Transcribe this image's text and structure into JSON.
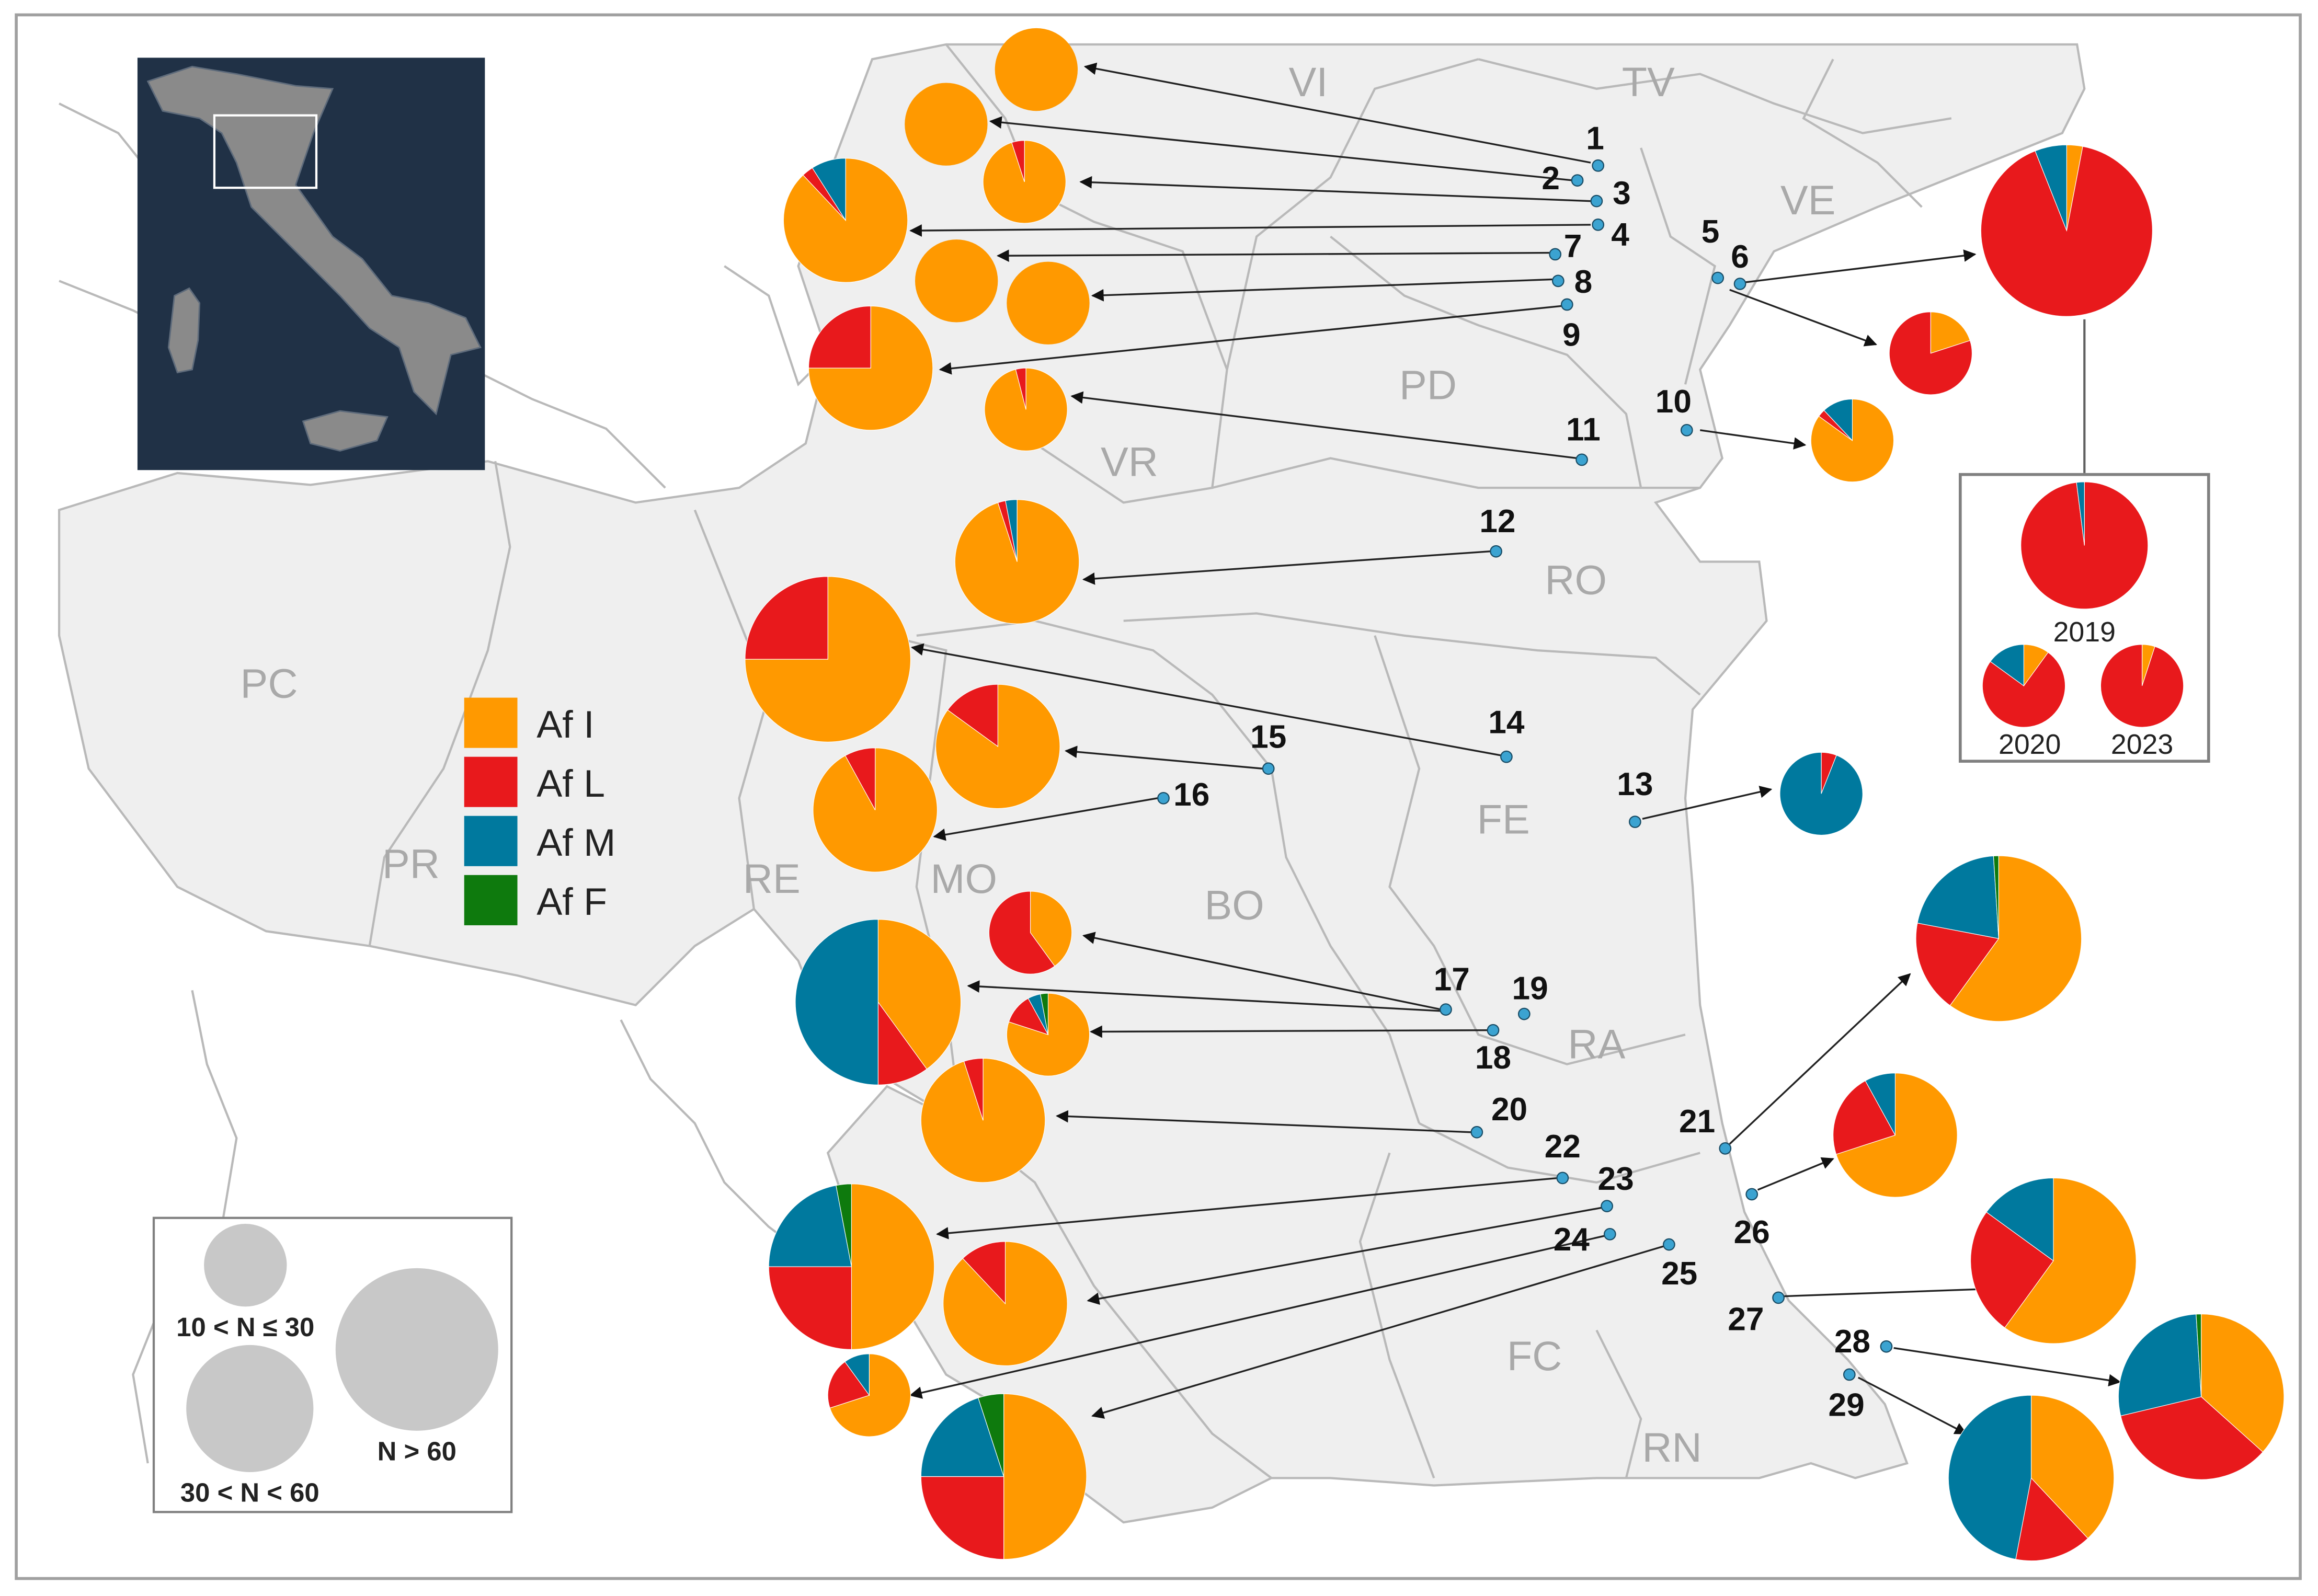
{
  "colors": {
    "af_i": "#FF9900",
    "af_l": "#E8191C",
    "af_m": "#00799E",
    "af_f": "#0E7A0D",
    "region_fill": "#EFEFEF",
    "border": "#B9B9B9",
    "inset_bg": "#203146",
    "site_dot": "#3BA3D1",
    "province_label": "#A9A9A9"
  },
  "provinces": [
    "VI",
    "TV",
    "VE",
    "PD",
    "VR",
    "RO",
    "PC",
    "PR",
    "RE",
    "MO",
    "BO",
    "FE",
    "RA",
    "FC",
    "RN"
  ],
  "site_labels": [
    "1",
    "2",
    "3",
    "4",
    "5",
    "6",
    "7",
    "8",
    "9",
    "10",
    "11",
    "12",
    "13",
    "14",
    "15",
    "16",
    "17",
    "18",
    "19",
    "20",
    "21",
    "22",
    "23",
    "24",
    "25",
    "26",
    "27",
    "28",
    "29"
  ],
  "legend": {
    "categories": [
      {
        "key": "af_i",
        "label": "Af I"
      },
      {
        "key": "af_l",
        "label": "Af L"
      },
      {
        "key": "af_m",
        "label": "Af M"
      },
      {
        "key": "af_f",
        "label": "Af F"
      }
    ]
  },
  "size_legend": {
    "small": "10 < N ≤ 30",
    "medium": "30 < N < 60",
    "large": "N > 60"
  },
  "temporal_inset": {
    "years": [
      "2019",
      "2020",
      "2023"
    ]
  },
  "chart_data": {
    "type": "pie",
    "pies": [
      {
        "site": "1",
        "size": "small",
        "af_i": 100,
        "af_l": 0,
        "af_m": 0,
        "af_f": 0
      },
      {
        "site": "2",
        "size": "small",
        "af_i": 100,
        "af_l": 0,
        "af_m": 0,
        "af_f": 0
      },
      {
        "site": "3",
        "size": "small",
        "af_i": 95,
        "af_l": 5,
        "af_m": 0,
        "af_f": 0
      },
      {
        "site": "4",
        "size": "medium",
        "af_i": 88,
        "af_l": 3,
        "af_m": 9,
        "af_f": 0
      },
      {
        "site": "7",
        "size": "small",
        "af_i": 100,
        "af_l": 0,
        "af_m": 0,
        "af_f": 0
      },
      {
        "site": "8",
        "size": "small",
        "af_i": 100,
        "af_l": 0,
        "af_m": 0,
        "af_f": 0
      },
      {
        "site": "9",
        "size": "medium",
        "af_i": 75,
        "af_l": 25,
        "af_m": 0,
        "af_f": 0
      },
      {
        "site": "11",
        "size": "small",
        "af_i": 96,
        "af_l": 4,
        "af_m": 0,
        "af_f": 0
      },
      {
        "site": "12",
        "size": "medium",
        "af_i": 95,
        "af_l": 2,
        "af_m": 3,
        "af_f": 0
      },
      {
        "site": "5",
        "size": "large",
        "af_i": 3,
        "af_l": 91,
        "af_m": 6,
        "af_f": 0
      },
      {
        "site": "6",
        "size": "small",
        "af_i": 20,
        "af_l": 80,
        "af_m": 0,
        "af_f": 0
      },
      {
        "site": "10",
        "size": "small",
        "af_i": 85,
        "af_l": 3,
        "af_m": 12,
        "af_f": 0
      },
      {
        "site": "14",
        "size": "large",
        "af_i": 75,
        "af_l": 25,
        "af_m": 0,
        "af_f": 0
      },
      {
        "site": "15",
        "size": "medium",
        "af_i": 85,
        "af_l": 15,
        "af_m": 0,
        "af_f": 0
      },
      {
        "site": "16",
        "size": "medium",
        "af_i": 92,
        "af_l": 8,
        "af_m": 0,
        "af_f": 0
      },
      {
        "site": "13",
        "size": "small",
        "af_i": 0,
        "af_l": 6,
        "af_m": 94,
        "af_f": 0
      },
      {
        "site": "17",
        "size": "small",
        "af_i": 40,
        "af_l": 60,
        "af_m": 0,
        "af_f": 0
      },
      {
        "site": "19",
        "size": "large",
        "af_i": 40,
        "af_l": 10,
        "af_m": 50,
        "af_f": 0
      },
      {
        "site": "18",
        "size": "small",
        "af_i": 80,
        "af_l": 12,
        "af_m": 5,
        "af_f": 3
      },
      {
        "site": "20",
        "size": "medium",
        "af_i": 95,
        "af_l": 5,
        "af_m": 0,
        "af_f": 0
      },
      {
        "site": "22",
        "size": "large",
        "af_i": 50,
        "af_l": 25,
        "af_m": 22,
        "af_f": 3
      },
      {
        "site": "23",
        "size": "medium",
        "af_i": 88,
        "af_l": 12,
        "af_m": 0,
        "af_f": 0
      },
      {
        "site": "24",
        "size": "small",
        "af_i": 70,
        "af_l": 20,
        "af_m": 10,
        "af_f": 0
      },
      {
        "site": "25",
        "size": "large",
        "af_i": 50,
        "af_l": 25,
        "af_m": 20,
        "af_f": 5
      },
      {
        "site": "21",
        "size": "large",
        "af_i": 60,
        "af_l": 18,
        "af_m": 21,
        "af_f": 1
      },
      {
        "site": "26",
        "size": "medium",
        "af_i": 70,
        "af_l": 22,
        "af_m": 8,
        "af_f": 0
      },
      {
        "site": "27",
        "size": "large",
        "af_i": 60,
        "af_l": 25,
        "af_m": 15,
        "af_f": 0
      },
      {
        "site": "28",
        "size": "large",
        "af_i": 37,
        "af_l": 35,
        "af_m": 28,
        "af_f": 1
      },
      {
        "site": "29",
        "size": "large",
        "af_i": 38,
        "af_l": 15,
        "af_m": 47,
        "af_f": 0
      },
      {
        "site": "5",
        "year": "2019",
        "size": "large",
        "af_i": 0,
        "af_l": 98,
        "af_m": 2,
        "af_f": 0
      },
      {
        "site": "5",
        "year": "2020",
        "size": "small",
        "af_i": 10,
        "af_l": 75,
        "af_m": 15,
        "af_f": 0
      },
      {
        "site": "5",
        "year": "2023",
        "size": "small",
        "af_i": 5,
        "af_l": 95,
        "af_m": 0,
        "af_f": 0
      }
    ]
  }
}
